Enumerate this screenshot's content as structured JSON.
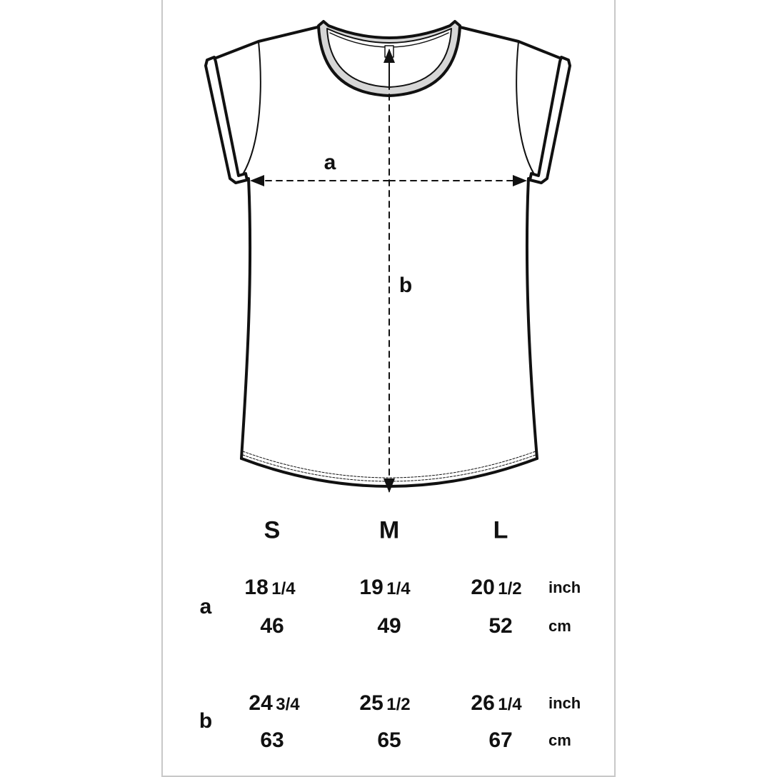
{
  "diagram": {
    "label_a": "a",
    "label_b": "b"
  },
  "table": {
    "sizes": [
      "S",
      "M",
      "L"
    ],
    "rows": [
      {
        "label": "a",
        "inch": [
          {
            "whole": "18",
            "frac": "1/4"
          },
          {
            "whole": "19",
            "frac": "1/4"
          },
          {
            "whole": "20",
            "frac": "1/2"
          }
        ],
        "cm": [
          "46",
          "49",
          "52"
        ],
        "inch_unit": "inch",
        "cm_unit": "cm"
      },
      {
        "label": "b",
        "inch": [
          {
            "whole": "24",
            "frac": "3/4"
          },
          {
            "whole": "25",
            "frac": "1/2"
          },
          {
            "whole": "26",
            "frac": "1/4"
          }
        ],
        "cm": [
          "63",
          "65",
          "67"
        ],
        "inch_unit": "inch",
        "cm_unit": "cm"
      }
    ]
  }
}
